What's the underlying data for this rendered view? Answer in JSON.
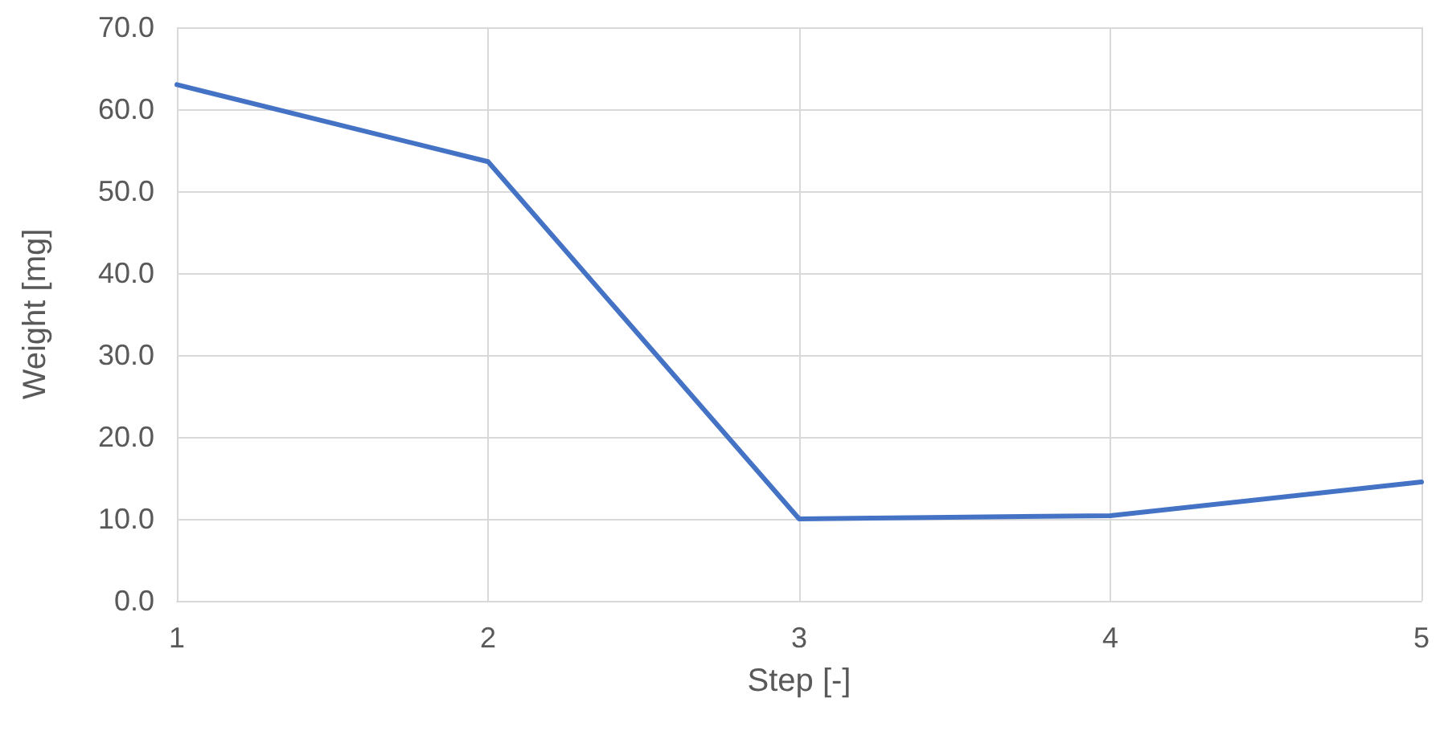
{
  "chart_data": {
    "type": "line",
    "xlabel": "Step [-]",
    "ylabel": "Weight [mg]",
    "x": [
      1,
      2,
      3,
      4,
      5
    ],
    "series": [
      {
        "color": "#4472c4",
        "values": [
          63.0,
          53.6,
          10.0,
          10.4,
          14.5
        ]
      }
    ],
    "xlim": [
      1,
      5
    ],
    "xticks": [
      1,
      2,
      3,
      4,
      5
    ],
    "ylim": [
      0,
      70
    ],
    "yticks": [
      {
        "value": 0,
        "label": "0.0"
      },
      {
        "value": 10,
        "label": "10.0"
      },
      {
        "value": 20,
        "label": "20.0"
      },
      {
        "value": 30,
        "label": "30.0"
      },
      {
        "value": 40,
        "label": "40.0"
      },
      {
        "value": 50,
        "label": "50.0"
      },
      {
        "value": 60,
        "label": "60.0"
      },
      {
        "value": 70,
        "label": "70.0"
      }
    ],
    "grid": true,
    "marker": "none",
    "line_style": "solid"
  }
}
